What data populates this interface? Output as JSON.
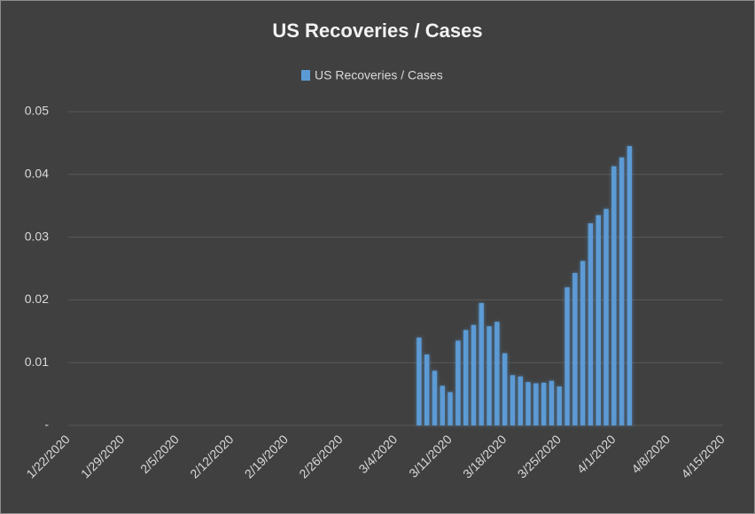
{
  "chart_data": {
    "type": "bar",
    "title": "US Recoveries / Cases",
    "series": [
      {
        "name": "US Recoveries / Cases",
        "color": "#5b9bd5",
        "values": [
          0.014,
          0.0113,
          0.0087,
          0.0063,
          0.0053,
          0.0135,
          0.0152,
          0.016,
          0.0195,
          0.0158,
          0.0165,
          0.0115,
          0.008,
          0.0078,
          0.0069,
          0.0067,
          0.0068,
          0.0071,
          0.0062,
          0.022,
          0.0243,
          0.0262,
          0.0322,
          0.0335,
          0.0345,
          0.0413,
          0.0427,
          0.0445
        ]
      }
    ],
    "x": [
      "3/7/2020",
      "3/8/2020",
      "3/9/2020",
      "3/10/2020",
      "3/11/2020",
      "3/12/2020",
      "3/13/2020",
      "3/14/2020",
      "3/15/2020",
      "3/16/2020",
      "3/17/2020",
      "3/18/2020",
      "3/19/2020",
      "3/20/2020",
      "3/21/2020",
      "3/22/2020",
      "3/23/2020",
      "3/24/2020",
      "3/25/2020",
      "3/26/2020",
      "3/27/2020",
      "3/28/2020",
      "3/29/2020",
      "3/30/2020",
      "3/31/2020",
      "4/1/2020",
      "4/2/2020",
      "4/3/2020"
    ],
    "xlim": [
      "1/22/2020",
      "4/15/2020"
    ],
    "xticks": [
      "1/22/2020",
      "1/29/2020",
      "2/5/2020",
      "2/12/2020",
      "2/19/2020",
      "2/26/2020",
      "3/4/2020",
      "3/11/2020",
      "3/18/2020",
      "3/25/2020",
      "4/1/2020",
      "4/8/2020",
      "4/15/2020"
    ],
    "ylim": [
      0,
      0.05
    ],
    "yticks": [
      {
        "value": 0,
        "label": "-"
      },
      0.01,
      0.02,
      0.03,
      0.04,
      0.05
    ],
    "grid": true,
    "legend": "top"
  }
}
